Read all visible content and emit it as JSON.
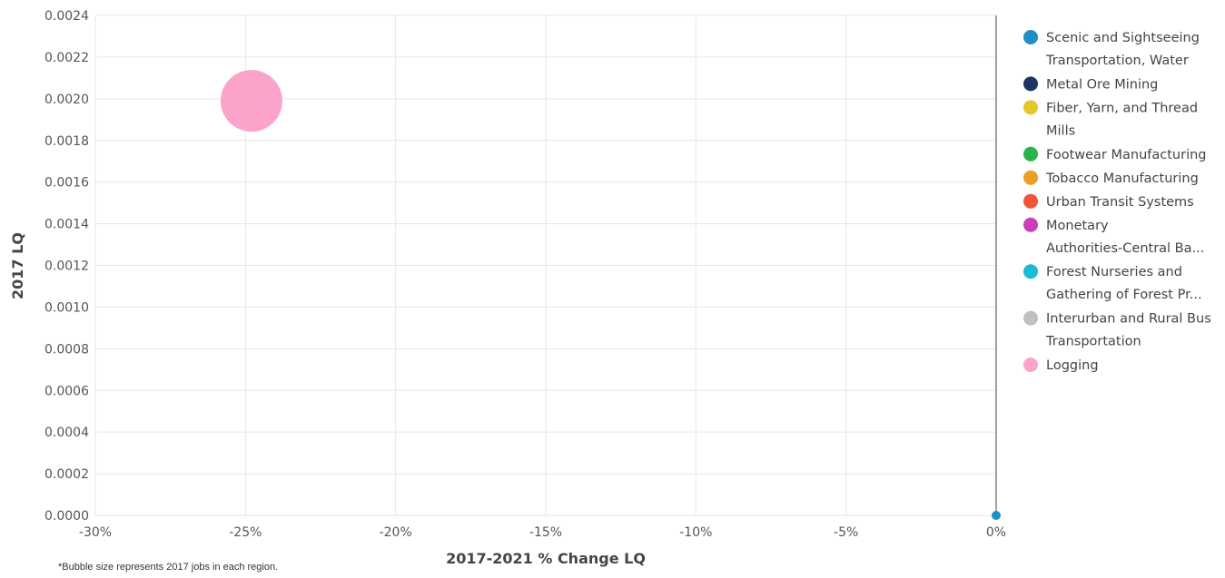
{
  "chart_data": {
    "type": "scatter",
    "bubble": true,
    "xlabel": "2017-2021 % Change LQ",
    "ylabel": "2017 LQ",
    "xlim": [
      -30,
      0
    ],
    "ylim": [
      0,
      0.0024
    ],
    "x_ticks": [
      -30,
      -25,
      -20,
      -15,
      -10,
      -5,
      0
    ],
    "x_tick_labels": [
      "-30%",
      "-25%",
      "-20%",
      "-15%",
      "-10%",
      "-5%",
      "0%"
    ],
    "y_ticks": [
      0,
      0.0002,
      0.0004,
      0.0006,
      0.0008,
      0.001,
      0.0012,
      0.0014,
      0.0016,
      0.0018,
      0.002,
      0.0022,
      0.0024
    ],
    "y_tick_labels": [
      "0.0000",
      "0.0002",
      "0.0004",
      "0.0006",
      "0.0008",
      "0.0010",
      "0.0012",
      "0.0014",
      "0.0016",
      "0.0018",
      "0.0020",
      "0.0022",
      "0.0024"
    ],
    "grid": true,
    "legend_position": "right",
    "note": "*Bubble size represents 2017 jobs in each region.",
    "series": [
      {
        "name": "Scenic and Sightseeing Transportation, Water",
        "legend_lines": [
          "Scenic and Sightseeing",
          "Transportation, Water"
        ],
        "color": "#1e8fc7",
        "x": 0,
        "y": 0,
        "size": 1
      },
      {
        "name": "Metal Ore Mining",
        "legend_lines": [
          "Metal Ore Mining"
        ],
        "color": "#1f3461",
        "x": 0,
        "y": 0,
        "size": 0
      },
      {
        "name": "Fiber, Yarn, and Thread Mills",
        "legend_lines": [
          "Fiber, Yarn, and Thread",
          "Mills"
        ],
        "color": "#e3c82a",
        "x": 0,
        "y": 0,
        "size": 0
      },
      {
        "name": "Footwear Manufacturing",
        "legend_lines": [
          "Footwear Manufacturing"
        ],
        "color": "#29b34a",
        "x": 0,
        "y": 0,
        "size": 0
      },
      {
        "name": "Tobacco Manufacturing",
        "legend_lines": [
          "Tobacco Manufacturing"
        ],
        "color": "#e8a026",
        "x": 0,
        "y": 0,
        "size": 0
      },
      {
        "name": "Urban Transit Systems",
        "legend_lines": [
          "Urban Transit Systems"
        ],
        "color": "#f2553a",
        "x": 0,
        "y": 0,
        "size": 0
      },
      {
        "name": "Monetary Authorities-Central Ba...",
        "legend_lines": [
          "Monetary",
          "Authorities-Central Ba..."
        ],
        "color": "#c840b8",
        "x": 0,
        "y": 0,
        "size": 0
      },
      {
        "name": "Forest Nurseries and Gathering of Forest Pr...",
        "legend_lines": [
          "Forest Nurseries and",
          "Gathering of Forest Pr..."
        ],
        "color": "#19bcd4",
        "x": 0,
        "y": 0,
        "size": 0
      },
      {
        "name": "Interurban and Rural Bus Transportation",
        "legend_lines": [
          "Interurban and Rural Bus",
          "Transportation"
        ],
        "color": "#c0c0c0",
        "x": 0,
        "y": 0,
        "size": 0
      },
      {
        "name": "Logging",
        "legend_lines": [
          "Logging"
        ],
        "color": "#fca3cc",
        "x": -24.8,
        "y": 0.00199,
        "size": 100
      }
    ]
  }
}
